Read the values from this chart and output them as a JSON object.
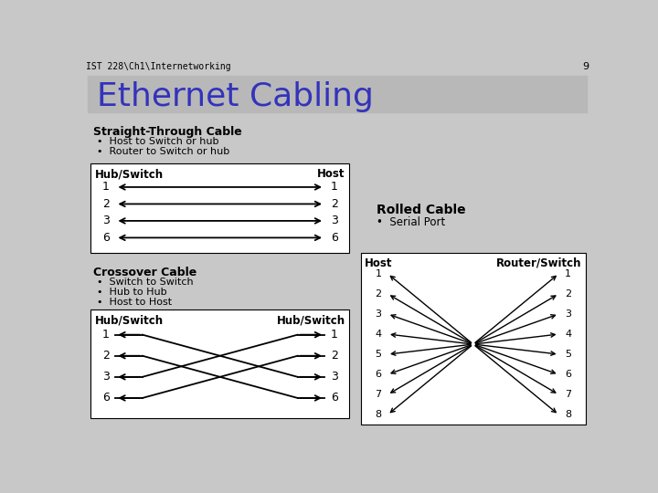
{
  "title": "Ethernet Cabling",
  "header_text": "IST 228\\Ch1\\Internetworking",
  "page_num": "9",
  "bg_color": "#c8c8c8",
  "header_bg": "#b0b0b0",
  "title_bg": "#b8b8b8",
  "title_color": "#3333bb",
  "title_fontsize": 26,
  "box_bg": "#ffffff",
  "straight_title": "Straight-Through Cable",
  "straight_bullets": [
    "Host to Switch or hub",
    "Router to Switch or hub"
  ],
  "straight_left_label": "Hub/Switch",
  "straight_right_label": "Host",
  "straight_pins": [
    1,
    2,
    3,
    6
  ],
  "crossover_title": "Crossover Cable",
  "crossover_bullets": [
    "Switch to Switch",
    "Hub to Hub",
    "Host to Host"
  ],
  "crossover_left_label": "Hub/Switch",
  "crossover_right_label": "Hub/Switch",
  "crossover_pins": [
    1,
    2,
    3,
    6
  ],
  "rolled_title": "Rolled Cable",
  "rolled_bullets": [
    "Serial Port"
  ],
  "rolled_left_label": "Host",
  "rolled_right_label": "Router/Switch",
  "rolled_pins": [
    1,
    2,
    3,
    4,
    5,
    6,
    7,
    8
  ]
}
